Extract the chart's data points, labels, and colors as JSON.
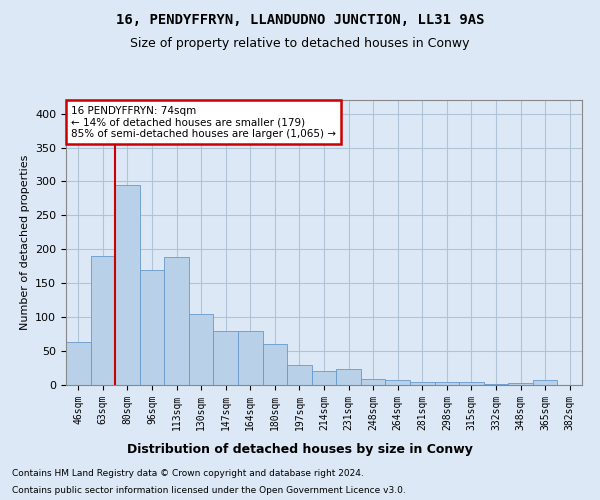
{
  "title1": "16, PENDYFFRYN, LLANDUDNO JUNCTION, LL31 9AS",
  "title2": "Size of property relative to detached houses in Conwy",
  "xlabel": "Distribution of detached houses by size in Conwy",
  "ylabel": "Number of detached properties",
  "footnote1": "Contains HM Land Registry data © Crown copyright and database right 2024.",
  "footnote2": "Contains public sector information licensed under the Open Government Licence v3.0.",
  "annotation_line1": "16 PENDYFFRYN: 74sqm",
  "annotation_line2": "← 14% of detached houses are smaller (179)",
  "annotation_line3": "85% of semi-detached houses are larger (1,065) →",
  "categories": [
    "46sqm",
    "63sqm",
    "80sqm",
    "96sqm",
    "113sqm",
    "130sqm",
    "147sqm",
    "164sqm",
    "180sqm",
    "197sqm",
    "214sqm",
    "231sqm",
    "248sqm",
    "264sqm",
    "281sqm",
    "298sqm",
    "315sqm",
    "332sqm",
    "348sqm",
    "365sqm",
    "382sqm"
  ],
  "values": [
    63,
    190,
    295,
    170,
    188,
    105,
    79,
    79,
    60,
    30,
    20,
    24,
    9,
    7,
    5,
    4,
    4,
    1,
    3,
    8,
    0
  ],
  "bar_color": "#b8d0e8",
  "bar_edge_color": "#6699cc",
  "grid_color": "#b0c4d8",
  "vline_color": "#cc0000",
  "background_color": "#dce8f5",
  "ylim": [
    0,
    420
  ],
  "yticks": [
    0,
    50,
    100,
    150,
    200,
    250,
    300,
    350,
    400
  ],
  "vline_x": 1.5
}
